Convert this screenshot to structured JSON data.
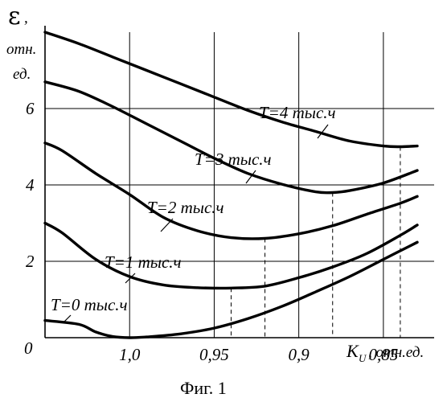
{
  "chart_data": {
    "type": "line",
    "title": "",
    "caption": "Фиг. 1",
    "ylabel": {
      "symbol": "ε",
      "comma": ",",
      "line1": "отн.",
      "line2": "ед."
    },
    "xlabel": {
      "symbol": "K",
      "subscript": "U",
      "suffix": ", отн.ед."
    },
    "xlim": [
      1.05,
      0.82
    ],
    "ylim": [
      0,
      8
    ],
    "x_reversed": true,
    "grid": true,
    "x_tick_labels": [
      "1,0",
      "0,95",
      "0,9",
      "0,85"
    ],
    "x_tick_values": [
      1.0,
      0.95,
      0.9,
      0.85
    ],
    "y_tick_labels": [
      "0",
      "2",
      "4",
      "6"
    ],
    "y_tick_values": [
      0,
      2,
      4,
      6
    ],
    "series": [
      {
        "name": "T=0 тыс.ч",
        "minimum": [
          1.0,
          0.0
        ],
        "x": [
          1.05,
          1.03,
          1.02,
          1.01,
          1.0,
          0.99,
          0.97,
          0.95,
          0.93,
          0.91,
          0.89,
          0.87,
          0.85,
          0.83
        ],
        "y": [
          0.45,
          0.35,
          0.15,
          0.03,
          0.0,
          0.02,
          0.1,
          0.25,
          0.5,
          0.82,
          1.2,
          1.6,
          2.05,
          2.5
        ]
      },
      {
        "name": "T=1 тыс.ч",
        "minimum": [
          0.94,
          1.3
        ],
        "x": [
          1.05,
          1.04,
          1.02,
          1.0,
          0.98,
          0.96,
          0.94,
          0.92,
          0.9,
          0.88,
          0.86,
          0.84,
          0.83
        ],
        "y": [
          3.0,
          2.75,
          2.05,
          1.6,
          1.38,
          1.31,
          1.3,
          1.35,
          1.57,
          1.85,
          2.2,
          2.68,
          2.95
        ]
      },
      {
        "name": "T=2 тыс.ч",
        "minimum": [
          0.92,
          2.6
        ],
        "x": [
          1.05,
          1.04,
          1.02,
          1.0,
          0.98,
          0.96,
          0.94,
          0.92,
          0.9,
          0.88,
          0.86,
          0.84,
          0.83
        ],
        "y": [
          5.1,
          4.9,
          4.3,
          3.75,
          3.15,
          2.8,
          2.62,
          2.6,
          2.72,
          2.93,
          3.23,
          3.52,
          3.7
        ]
      },
      {
        "name": "T=3 тыс.ч",
        "minimum": [
          0.88,
          3.8
        ],
        "x": [
          1.05,
          1.03,
          1.01,
          0.99,
          0.97,
          0.95,
          0.93,
          0.91,
          0.89,
          0.88,
          0.87,
          0.85,
          0.83
        ],
        "y": [
          6.7,
          6.45,
          6.05,
          5.6,
          5.15,
          4.7,
          4.3,
          4.02,
          3.82,
          3.8,
          3.85,
          4.05,
          4.38
        ]
      },
      {
        "name": "T=4 тыс.ч",
        "minimum": [
          0.84,
          5.0
        ],
        "x": [
          1.05,
          1.03,
          1.01,
          0.99,
          0.97,
          0.95,
          0.93,
          0.91,
          0.89,
          0.87,
          0.85,
          0.84,
          0.83
        ],
        "y": [
          8.0,
          7.7,
          7.35,
          7.0,
          6.65,
          6.3,
          5.95,
          5.65,
          5.4,
          5.15,
          5.02,
          5.0,
          5.02
        ]
      }
    ]
  }
}
